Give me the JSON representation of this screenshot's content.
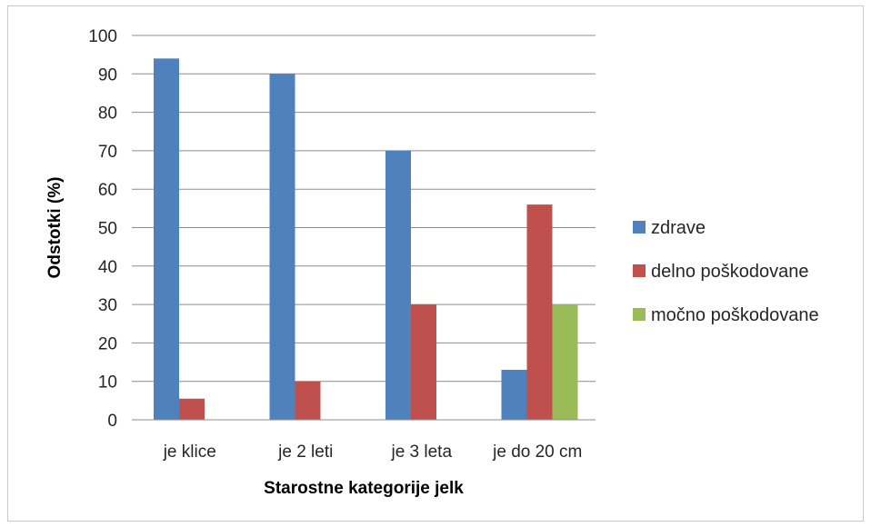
{
  "chart_data": {
    "type": "bar",
    "title": "",
    "xlabel": "Starostne kategorije jelk",
    "ylabel": "Odstotki (%)",
    "ylim": [
      0,
      100
    ],
    "yticks": [
      0,
      10,
      20,
      30,
      40,
      50,
      60,
      70,
      80,
      90,
      100
    ],
    "grid": true,
    "legend_position": "right",
    "categories": [
      "je klice",
      "je 2 leti",
      "je 3 leta",
      "je do 20 cm"
    ],
    "series": [
      {
        "name": "zdrave",
        "color": "#4f81bd",
        "values": [
          94,
          90,
          70,
          13
        ]
      },
      {
        "name": "delno poškodovane",
        "color": "#c0504d",
        "values": [
          5.5,
          10,
          30,
          56
        ]
      },
      {
        "name": "močno poškodovane",
        "color": "#9bbb59",
        "values": [
          0,
          0,
          0,
          30
        ]
      }
    ]
  }
}
